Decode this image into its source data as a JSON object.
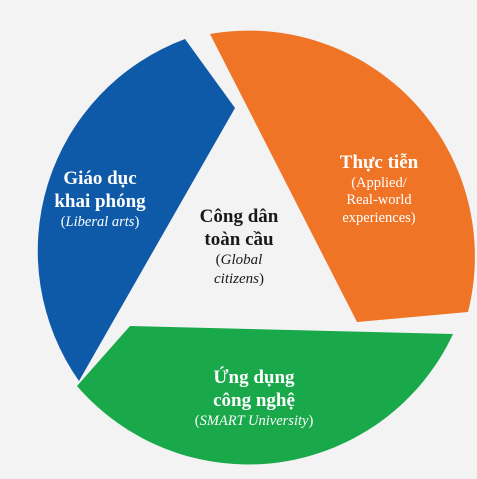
{
  "colors": {
    "background": "#f3f3f4",
    "liberal_arts": "#0f5aa8",
    "applied": "#ef7426",
    "smart": "#19a84a",
    "center_text": "#1a1a1a"
  },
  "segments": {
    "liberal": {
      "title_line1": "Giáo dục",
      "title_line2": "khai phóng",
      "sub_open": "(",
      "sub_italic": "Liberal arts",
      "sub_close": ")"
    },
    "applied": {
      "title_line1": "Thực tiễn",
      "sub_line1": "(Applied/",
      "sub_line2": "Real-world",
      "sub_line3": "experiences)"
    },
    "smart": {
      "title_line1": "Ứng dụng",
      "title_line2": "công nghệ",
      "sub_open": "(",
      "sub_italic": "SMART University",
      "sub_close": ")"
    }
  },
  "center": {
    "title_line1": "Công dân",
    "title_line2": "toàn cầu",
    "sub_line1_open": "(",
    "sub_line1_italic": "Global",
    "sub_line2_italic": "citizens",
    "sub_line2_close": ")"
  }
}
